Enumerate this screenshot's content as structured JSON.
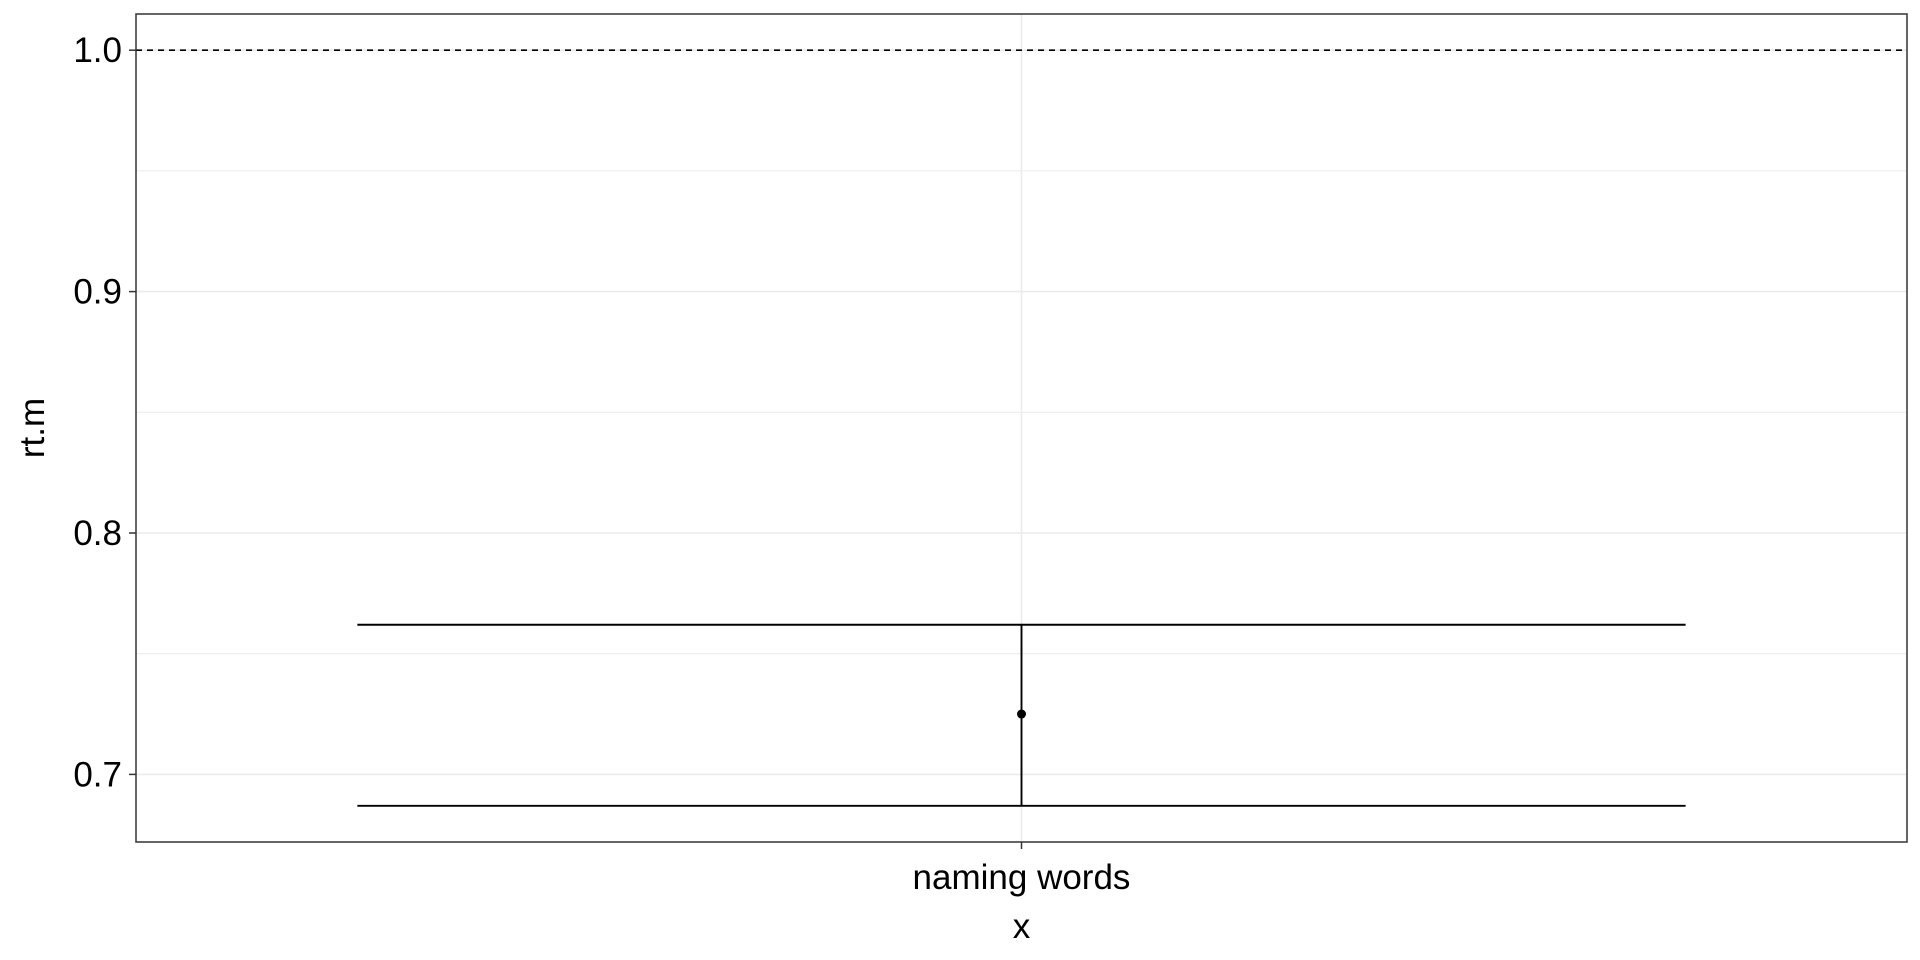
{
  "chart_data": {
    "type": "errorbar",
    "title": "",
    "xlabel": "x",
    "ylabel": "rt.m",
    "categories": [
      "naming words"
    ],
    "points": [
      {
        "x": "naming words",
        "y": 0.725,
        "ymin": 0.687,
        "ymax": 0.762
      }
    ],
    "reference_line": {
      "y": 1.0,
      "style": "dashed"
    },
    "ylim": [
      0.672,
      1.015
    ],
    "yticks": [
      0.7,
      0.8,
      0.9,
      1.0
    ],
    "ytick_labels": [
      "0.7",
      "0.8",
      "0.9",
      "1.0"
    ],
    "grid": true,
    "colors": {
      "mark": "#000000",
      "grid": "#ebebeb",
      "panel_border": "#333333"
    }
  }
}
